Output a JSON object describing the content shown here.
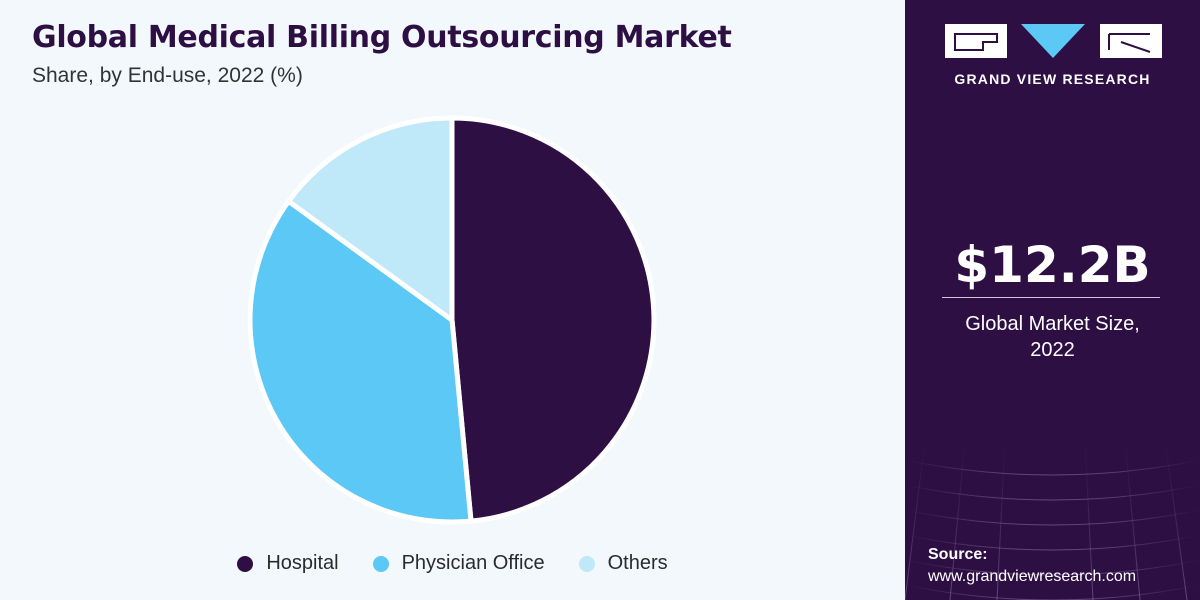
{
  "chart_data": {
    "type": "pie",
    "title": "Global Medical Billing Outsourcing Market",
    "subtitle": "Share, by End-use, 2022 (%)",
    "slices": [
      {
        "label": "Hospital",
        "value": 48.5,
        "color": "#2e0f44"
      },
      {
        "label": "Physician Office",
        "value": 36.5,
        "color": "#5bc8f5"
      },
      {
        "label": "Others",
        "value": 15.0,
        "color": "#bfe8f9"
      }
    ],
    "legend_position": "bottom"
  },
  "sidebar": {
    "brand": "GRAND VIEW RESEARCH",
    "stat_value": "$12.2B",
    "stat_label_line1": "Global Market Size,",
    "stat_label_line2": "2022",
    "source_label": "Source:",
    "source_url": "www.grandviewresearch.com"
  },
  "colors": {
    "brand_purple": "#2e0f44",
    "accent_blue": "#5bc8f5",
    "light_blue": "#bfe8f9",
    "background": "#f3f8fc"
  }
}
